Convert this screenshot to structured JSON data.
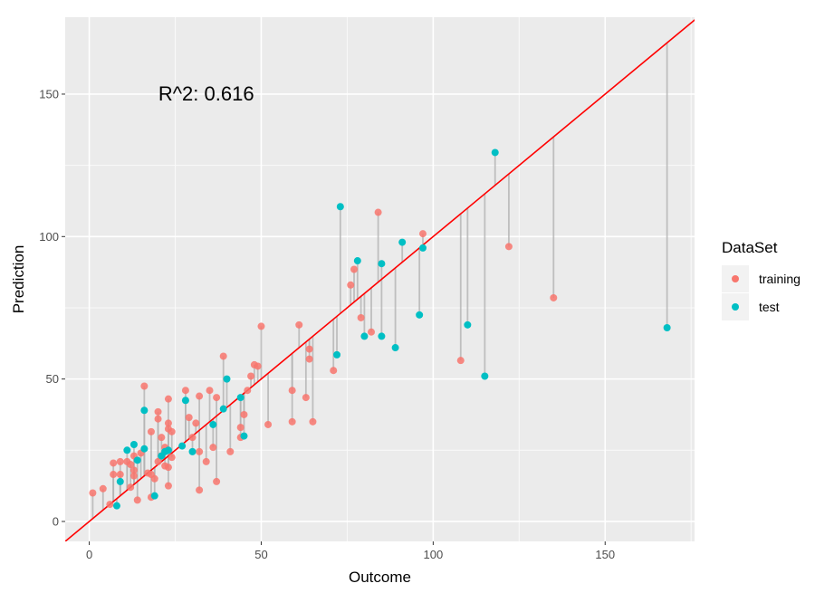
{
  "chart_data": {
    "type": "scatter",
    "title": "",
    "xlabel": "Outcome",
    "ylabel": "Prediction",
    "xlim": [
      -7,
      176
    ],
    "ylim": [
      -7,
      177
    ],
    "x_ticks": [
      0,
      50,
      100,
      150
    ],
    "y_ticks": [
      0,
      50,
      100,
      150
    ],
    "grid": true,
    "annotation": {
      "text": "R^2: 0.616",
      "x": 34,
      "y": 150
    },
    "reference_line": {
      "type": "identity",
      "color": "#ff0000"
    },
    "residual_segments": true,
    "legend": {
      "title": "DataSet",
      "placement": "right",
      "entries": [
        {
          "label": "training",
          "color": "#F8766D"
        },
        {
          "label": "test",
          "color": "#00BFC4"
        }
      ]
    },
    "series": [
      {
        "name": "training",
        "color": "#F8766D",
        "points": [
          [
            1,
            10
          ],
          [
            4,
            11.5
          ],
          [
            6,
            6
          ],
          [
            7,
            16.5
          ],
          [
            7,
            20.5
          ],
          [
            9,
            16.5
          ],
          [
            9,
            21
          ],
          [
            11,
            21
          ],
          [
            12,
            20
          ],
          [
            12,
            12
          ],
          [
            13,
            16
          ],
          [
            13,
            18
          ],
          [
            13,
            23
          ],
          [
            14,
            7.5
          ],
          [
            15,
            24
          ],
          [
            16,
            47.5
          ],
          [
            17,
            17
          ],
          [
            18,
            8.5
          ],
          [
            18,
            16.5
          ],
          [
            18,
            31.5
          ],
          [
            19,
            15
          ],
          [
            20,
            38.5
          ],
          [
            20,
            36
          ],
          [
            20,
            21
          ],
          [
            21,
            23
          ],
          [
            21,
            29.5
          ],
          [
            22,
            26
          ],
          [
            22,
            19.5
          ],
          [
            23,
            43
          ],
          [
            23,
            34.5
          ],
          [
            23,
            32.5
          ],
          [
            23,
            19
          ],
          [
            23,
            12.5
          ],
          [
            24,
            31.5
          ],
          [
            24,
            22.5
          ],
          [
            28,
            46
          ],
          [
            29,
            36.5
          ],
          [
            30,
            29.5
          ],
          [
            31,
            34.5
          ],
          [
            32,
            44
          ],
          [
            32,
            24.5
          ],
          [
            32,
            11
          ],
          [
            34,
            21
          ],
          [
            35,
            46
          ],
          [
            36,
            26
          ],
          [
            37,
            14
          ],
          [
            37,
            43.5
          ],
          [
            39,
            58
          ],
          [
            41,
            24.5
          ],
          [
            44,
            33
          ],
          [
            44,
            29.5
          ],
          [
            45,
            37.5
          ],
          [
            46,
            46
          ],
          [
            47,
            51
          ],
          [
            48,
            55
          ],
          [
            49,
            54.5
          ],
          [
            50,
            68.5
          ],
          [
            52,
            34
          ],
          [
            59,
            35
          ],
          [
            59,
            46
          ],
          [
            61,
            69
          ],
          [
            63,
            43.5
          ],
          [
            64,
            60.5
          ],
          [
            64,
            57
          ],
          [
            65,
            35
          ],
          [
            71,
            53
          ],
          [
            76,
            83
          ],
          [
            77,
            88.5
          ],
          [
            79,
            71.5
          ],
          [
            82,
            66.5
          ],
          [
            84,
            108.5
          ],
          [
            97,
            101
          ],
          [
            108,
            56.5
          ],
          [
            122,
            96.5
          ],
          [
            135,
            78.5
          ]
        ]
      },
      {
        "name": "test",
        "color": "#00BFC4",
        "points": [
          [
            8,
            5.5
          ],
          [
            9,
            14
          ],
          [
            11,
            25
          ],
          [
            13,
            27
          ],
          [
            14,
            21.5
          ],
          [
            16,
            39
          ],
          [
            16,
            25.5
          ],
          [
            19,
            9
          ],
          [
            21,
            23
          ],
          [
            22,
            24.5
          ],
          [
            23,
            25
          ],
          [
            27,
            26.5
          ],
          [
            28,
            42.5
          ],
          [
            30,
            24.5
          ],
          [
            36,
            34
          ],
          [
            39,
            39.5
          ],
          [
            40,
            50
          ],
          [
            44,
            43.5
          ],
          [
            45,
            30
          ],
          [
            72,
            58.5
          ],
          [
            73,
            110.5
          ],
          [
            78,
            91.5
          ],
          [
            80,
            65
          ],
          [
            85,
            90.5
          ],
          [
            85,
            65
          ],
          [
            89,
            61
          ],
          [
            91,
            98
          ],
          [
            96,
            72.5
          ],
          [
            97,
            96
          ],
          [
            110,
            69
          ],
          [
            115,
            51
          ],
          [
            118,
            129.5
          ],
          [
            168,
            68
          ]
        ]
      }
    ]
  }
}
